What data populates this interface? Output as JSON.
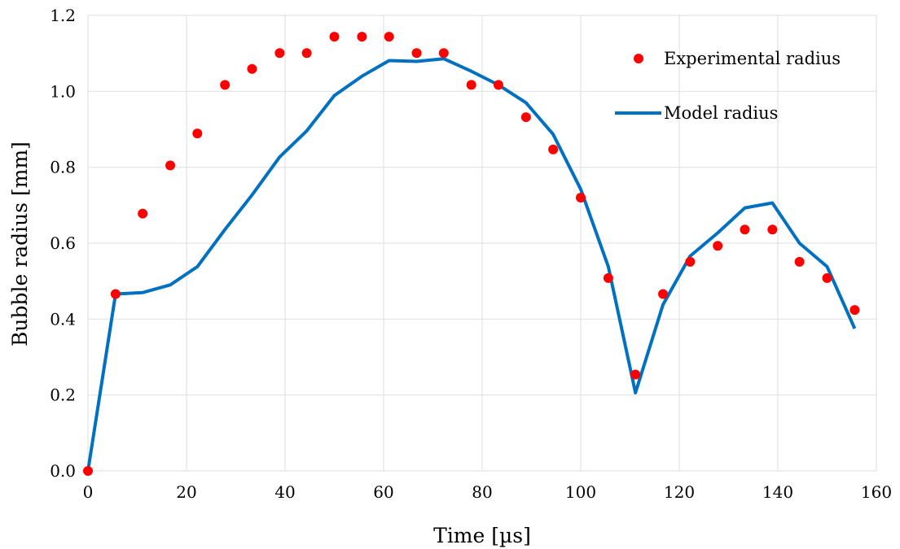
{
  "chart_data": {
    "type": "line",
    "title": "",
    "xlabel": "Time [µs]",
    "ylabel": "Bubble radius [mm]",
    "xlim": [
      0,
      160
    ],
    "ylim": [
      0,
      1.2
    ],
    "x_ticks": [
      "0",
      "20",
      "40",
      "60",
      "80",
      "100",
      "120",
      "140",
      "160"
    ],
    "y_ticks": [
      "0.0",
      "0.2",
      "0.4",
      "0.6",
      "0.8",
      "1.0",
      "1.2"
    ],
    "grid": "vertical and horizontal",
    "legend_position": "top-right",
    "series": [
      {
        "name": "Experimental radius",
        "style": "markers",
        "color": "#ff0000",
        "x": [
          0,
          5.6,
          11.1,
          16.7,
          22.2,
          27.8,
          33.3,
          38.9,
          44.4,
          50,
          55.6,
          61.1,
          66.7,
          72.2,
          77.8,
          83.3,
          88.9,
          94.4,
          100,
          105.6,
          111.1,
          116.7,
          122.2,
          127.8,
          133.3,
          138.9,
          144.4,
          150,
          155.6
        ],
        "y": [
          0.0,
          0.466,
          0.678,
          0.805,
          0.889,
          1.017,
          1.059,
          1.101,
          1.101,
          1.144,
          1.144,
          1.144,
          1.101,
          1.101,
          1.017,
          1.017,
          0.932,
          0.847,
          0.72,
          0.508,
          0.254,
          0.466,
          0.551,
          0.593,
          0.636,
          0.636,
          0.551,
          0.508,
          0.424
        ]
      },
      {
        "name": "Model radius",
        "style": "line",
        "color": "#0070c0",
        "x": [
          0,
          5.6,
          11.1,
          16.7,
          22.2,
          27.8,
          33.3,
          38.9,
          44.4,
          50,
          55.6,
          61.1,
          66.7,
          72.2,
          77.8,
          83.3,
          88.9,
          94.4,
          100,
          105.6,
          111.1,
          116.7,
          122.2,
          127.8,
          133.3,
          138.9,
          144.4,
          150,
          155.6
        ],
        "y": [
          0.0,
          0.466,
          0.47,
          0.49,
          0.538,
          0.636,
          0.727,
          0.827,
          0.896,
          0.989,
          1.04,
          1.081,
          1.079,
          1.086,
          1.053,
          1.017,
          0.97,
          0.887,
          0.742,
          0.538,
          0.206,
          0.438,
          0.566,
          0.627,
          0.693,
          0.706,
          0.6,
          0.538,
          0.375
        ]
      }
    ]
  }
}
